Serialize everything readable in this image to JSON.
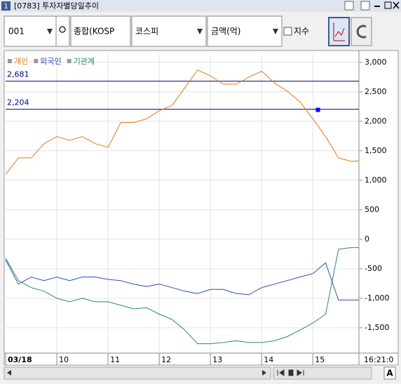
{
  "window": {
    "badge": "1",
    "title": "[0783] 투자자별당일추이"
  },
  "toolbar": {
    "code": "001",
    "market": "종합(KOSP",
    "index": "코스피",
    "unit": "금액(억)",
    "checkbox": "지수"
  },
  "status": {
    "time": "16:21:0",
    "font_button": "A"
  },
  "chart_data": {
    "type": "line",
    "x": [
      9,
      9.25,
      9.5,
      9.75,
      10,
      10.25,
      10.5,
      10.75,
      11,
      11.25,
      11.5,
      11.75,
      12,
      12.25,
      12.5,
      12.75,
      13,
      13.25,
      13.5,
      13.75,
      14,
      14.25,
      14.5,
      14.75,
      15,
      15.25,
      15.5,
      15.75,
      15.9
    ],
    "series": [
      {
        "name": "개인",
        "color": "#e07b1a",
        "values": [
          1100,
          1380,
          1380,
          1620,
          1740,
          1680,
          1740,
          1620,
          1560,
          1980,
          1980,
          2040,
          2180,
          2270,
          2570,
          2870,
          2770,
          2630,
          2630,
          2750,
          2850,
          2650,
          2510,
          2330,
          2040,
          1740,
          1380,
          1320,
          1330
        ]
      },
      {
        "name": "외국인",
        "color": "#2a4fb0",
        "values": [
          -350,
          -760,
          -640,
          -700,
          -640,
          -700,
          -640,
          -640,
          -680,
          -700,
          -760,
          -800,
          -760,
          -820,
          -880,
          -920,
          -850,
          -850,
          -920,
          -940,
          -820,
          -760,
          -700,
          -640,
          -580,
          -400,
          -1030,
          -1030,
          -1030
        ]
      },
      {
        "name": "기관계",
        "color": "#2e8a5a",
        "values": [
          -320,
          -700,
          -820,
          -880,
          -1000,
          -1060,
          -1000,
          -1060,
          -1060,
          -1120,
          -1180,
          -1160,
          -1270,
          -1360,
          -1540,
          -1770,
          -1770,
          -1750,
          -1720,
          -1750,
          -1750,
          -1720,
          -1650,
          -1540,
          -1420,
          -1270,
          -170,
          -140,
          -140
        ]
      }
    ],
    "xlim": [
      9,
      15.9
    ],
    "xticks": [
      {
        "value": 9,
        "label": "03/18"
      },
      10,
      11,
      12,
      13,
      14,
      15
    ],
    "ylim": [
      -1930,
      3140
    ],
    "yticks": [
      {
        "value": 3000,
        "label": "3,000"
      },
      {
        "value": 2500,
        "label": "2,500"
      },
      {
        "value": 2000,
        "label": "2,000"
      },
      {
        "value": 1500,
        "label": "1,500"
      },
      {
        "value": 1000,
        "label": "1,000"
      },
      500,
      0,
      -500,
      {
        "value": -1000,
        "label": "-1,000"
      },
      {
        "value": -1500,
        "label": "-1,500"
      }
    ],
    "hlines": [
      {
        "value": 2681,
        "label": "2,681"
      },
      {
        "value": 2204,
        "label": "2,204"
      }
    ],
    "grid": true
  }
}
